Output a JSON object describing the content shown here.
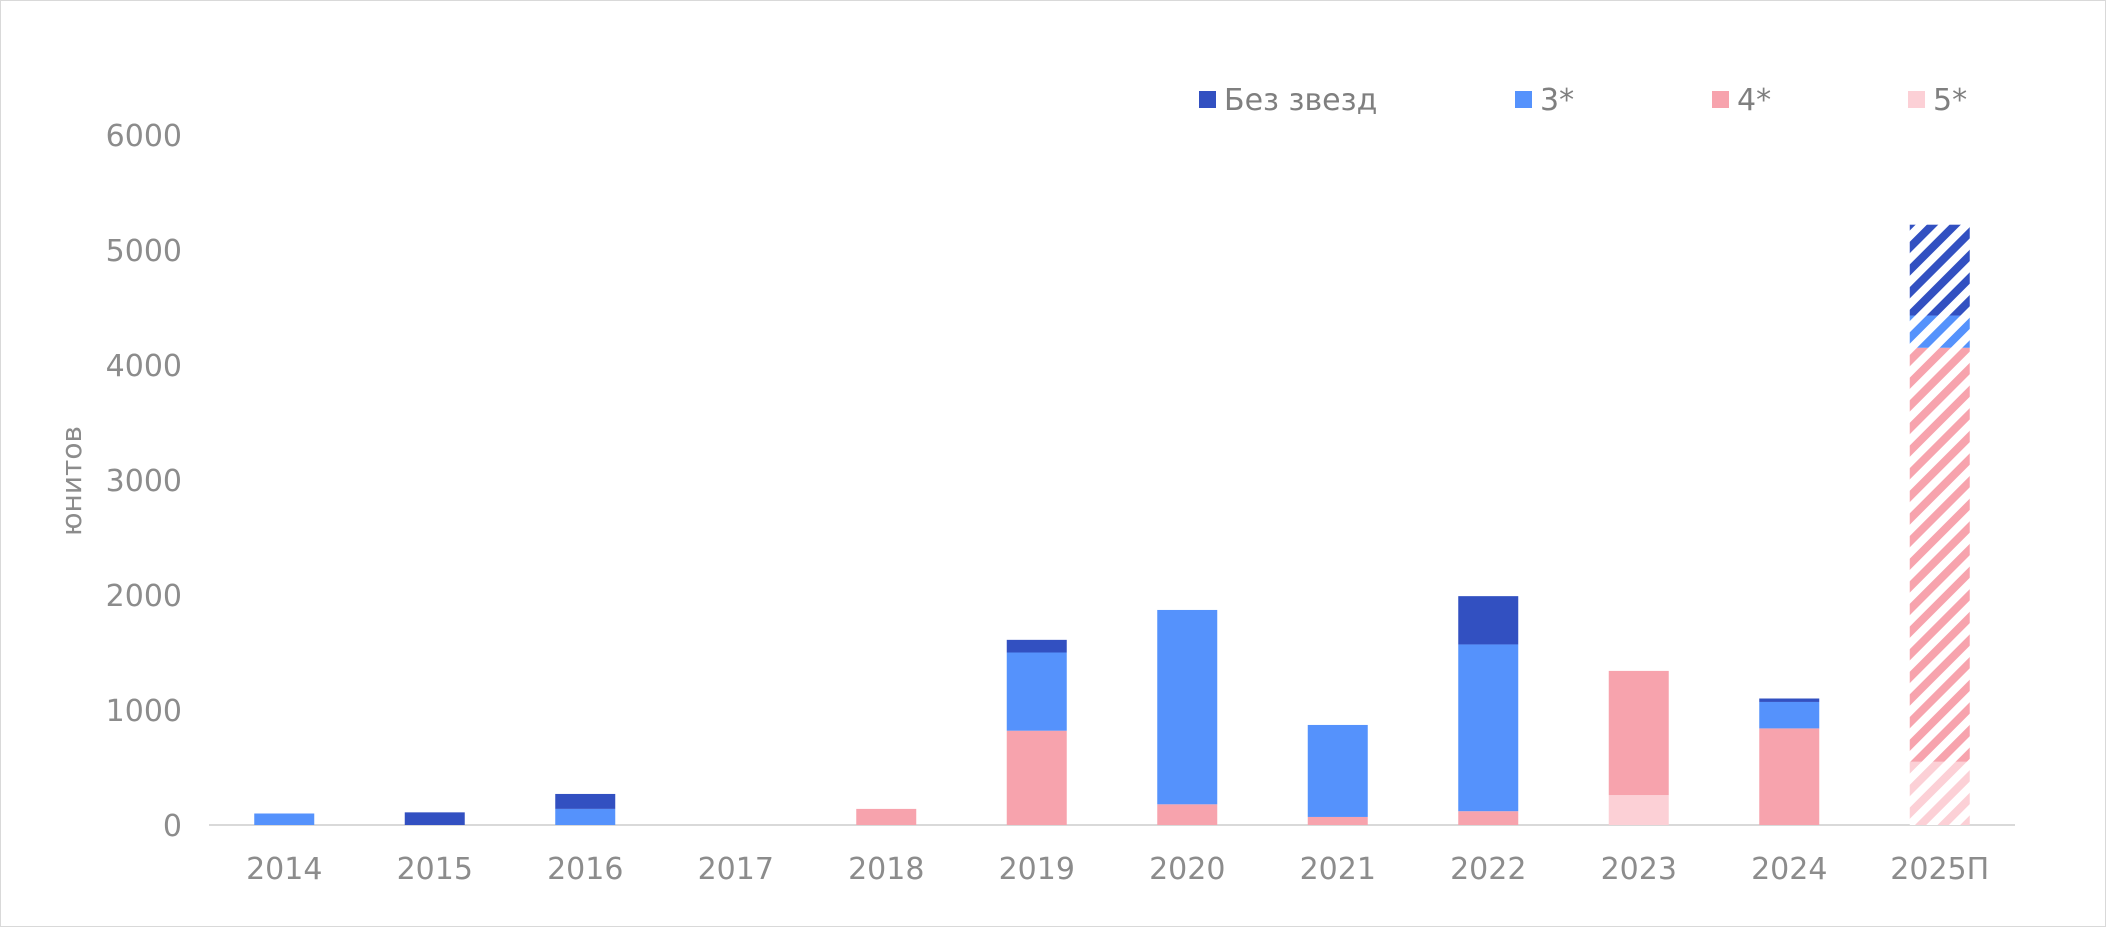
{
  "chart_data": {
    "type": "bar",
    "stacked": true,
    "ylabel": "юнитов",
    "ylim": [
      0,
      6000
    ],
    "yticks": [
      0,
      1000,
      2000,
      3000,
      4000,
      5000,
      6000
    ],
    "categories": [
      "2014",
      "2015",
      "2016",
      "2017",
      "2018",
      "2019",
      "2020",
      "2021",
      "2022",
      "2023",
      "2024",
      "2025П"
    ],
    "forecast_categories": [
      "2025П"
    ],
    "legend_position": "top-right",
    "grid": false,
    "series": [
      {
        "name": "5*",
        "color": "#fcd0d6",
        "values": [
          0,
          0,
          0,
          0,
          0,
          0,
          0,
          0,
          0,
          260,
          0,
          550
        ]
      },
      {
        "name": "4*",
        "color": "#f7a3ad",
        "values": [
          0,
          0,
          0,
          0,
          140,
          820,
          180,
          70,
          120,
          1080,
          840,
          3600
        ]
      },
      {
        "name": "3*",
        "color": "#5592fc",
        "values": [
          100,
          0,
          140,
          0,
          0,
          680,
          1690,
          800,
          1450,
          0,
          230,
          280
        ]
      },
      {
        "name": "Без звезд",
        "color": "#3250c1",
        "values": [
          0,
          110,
          130,
          0,
          0,
          110,
          0,
          0,
          420,
          0,
          30,
          790
        ]
      }
    ],
    "legend_order": [
      "Без звезд",
      "3*",
      "4*",
      "5*"
    ]
  }
}
